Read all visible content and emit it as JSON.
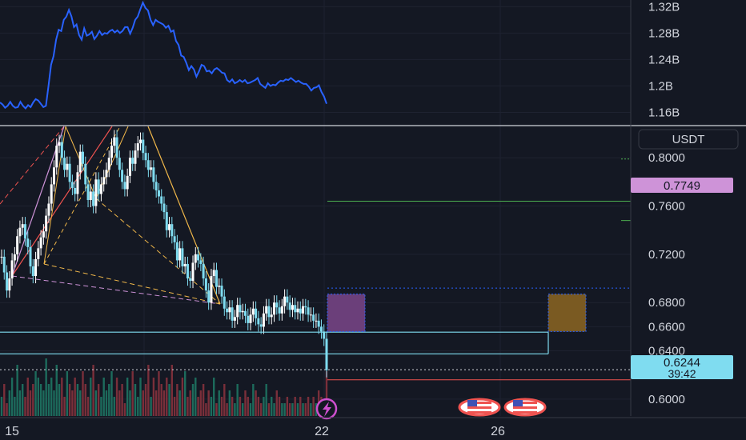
{
  "chart_data": [
    {
      "type": "line",
      "title": "",
      "ylim": [
        1.14,
        1.33
      ],
      "y_ticks": [
        "1.32B",
        "1.28B",
        "1.24B",
        "1.2B",
        "1.16B"
      ],
      "y_tick_values": [
        1.32,
        1.28,
        1.24,
        1.2,
        1.16
      ],
      "series": [
        {
          "color": "#2962ff",
          "values": [
            1.175,
            1.172,
            1.167,
            1.17,
            1.176,
            1.17,
            1.167,
            1.168,
            1.176,
            1.17,
            1.166,
            1.171,
            1.168,
            1.175,
            1.18,
            1.178,
            1.173,
            1.168,
            1.17,
            1.2,
            1.232,
            1.245,
            1.27,
            1.285,
            1.283,
            1.3,
            1.305,
            1.315,
            1.305,
            1.289,
            1.293,
            1.277,
            1.27,
            1.287,
            1.276,
            1.278,
            1.282,
            1.271,
            1.276,
            1.283,
            1.277,
            1.28,
            1.279,
            1.283,
            1.285,
            1.281,
            1.284,
            1.28,
            1.283,
            1.289,
            1.289,
            1.279,
            1.288,
            1.3,
            1.305,
            1.316,
            1.326,
            1.318,
            1.314,
            1.3,
            1.292,
            1.3,
            1.297,
            1.295,
            1.293,
            1.288,
            1.291,
            1.282,
            1.284,
            1.268,
            1.262,
            1.246,
            1.244,
            1.235,
            1.224,
            1.23,
            1.225,
            1.214,
            1.222,
            1.232,
            1.23,
            1.222,
            1.223,
            1.219,
            1.225,
            1.227,
            1.224,
            1.22,
            1.219,
            1.209,
            1.206,
            1.21,
            1.204,
            1.206,
            1.209,
            1.206,
            1.209,
            1.204,
            1.205,
            1.207,
            1.209,
            1.212,
            1.203,
            1.2,
            1.197,
            1.204,
            1.2,
            1.202,
            1.201,
            1.205,
            1.208,
            1.207,
            1.21,
            1.209,
            1.212,
            1.209,
            1.206,
            1.208,
            1.205,
            1.203,
            1.203,
            1.199,
            1.193,
            1.197,
            1.198,
            1.201,
            1.191,
            1.184,
            1.173
          ]
        }
      ]
    },
    {
      "type": "candlestick",
      "title": "",
      "ylim": [
        0.586,
        0.826
      ],
      "y_ticks": [
        "0.8000",
        "0.7600",
        "0.7200",
        "0.6800",
        "0.6600",
        "0.6400",
        "0.6000"
      ],
      "y_tick_values": [
        0.8,
        0.76,
        0.72,
        0.68,
        0.66,
        0.64,
        0.6
      ],
      "x_ticks": [
        "15",
        "22",
        "26"
      ],
      "currency": "USDT",
      "last_price": "0.6244",
      "countdown": "39:42",
      "highlight_price": "0.7749",
      "series_color_up": "#ffffff",
      "series_color_band": "#7fdcf0",
      "close_values": [
        0.718,
        0.705,
        0.69,
        0.7,
        0.715,
        0.72,
        0.735,
        0.742,
        0.745,
        0.733,
        0.726,
        0.71,
        0.702,
        0.716,
        0.725,
        0.734,
        0.739,
        0.752,
        0.762,
        0.778,
        0.792,
        0.81,
        0.813,
        0.8,
        0.79,
        0.795,
        0.78,
        0.775,
        0.77,
        0.788,
        0.805,
        0.795,
        0.778,
        0.765,
        0.772,
        0.76,
        0.782,
        0.77,
        0.778,
        0.784,
        0.79,
        0.8,
        0.81,
        0.817,
        0.8,
        0.79,
        0.78,
        0.774,
        0.785,
        0.8,
        0.795,
        0.806,
        0.812,
        0.815,
        0.804,
        0.798,
        0.79,
        0.792,
        0.78,
        0.773,
        0.768,
        0.762,
        0.755,
        0.74,
        0.745,
        0.735,
        0.73,
        0.715,
        0.725,
        0.71,
        0.712,
        0.7,
        0.698,
        0.713,
        0.72,
        0.715,
        0.712,
        0.7,
        0.69,
        0.68,
        0.702,
        0.707,
        0.693,
        0.694,
        0.685,
        0.675,
        0.672,
        0.676,
        0.665,
        0.668,
        0.678,
        0.672,
        0.673,
        0.669,
        0.663,
        0.67,
        0.675,
        0.667,
        0.662,
        0.66,
        0.671,
        0.677,
        0.668,
        0.67,
        0.68,
        0.676,
        0.671,
        0.677,
        0.685,
        0.68,
        0.674,
        0.678,
        0.672,
        0.675,
        0.671,
        0.677,
        0.676,
        0.67,
        0.67,
        0.665,
        0.665,
        0.66,
        0.656,
        0.65,
        0.624
      ],
      "volumes": [
        0.3,
        0.5,
        0.2,
        0.4,
        0.6,
        0.3,
        0.8,
        0.4,
        0.5,
        0.3,
        0.6,
        0.4,
        0.5,
        0.7,
        0.6,
        0.5,
        0.4,
        0.9,
        0.5,
        0.6,
        0.4,
        0.8,
        0.5,
        0.6,
        0.3,
        0.7,
        0.5,
        0.4,
        0.6,
        0.5,
        0.4,
        0.7,
        0.5,
        0.3,
        0.6,
        0.8,
        0.4,
        0.5,
        0.3,
        0.6,
        0.4,
        0.5,
        0.7,
        0.3,
        0.6,
        0.4,
        0.5,
        0.2,
        0.6,
        0.4,
        0.7,
        0.5,
        0.3,
        0.6,
        0.4,
        0.5,
        0.8,
        0.3,
        0.6,
        0.4,
        0.7,
        0.5,
        0.4,
        0.6,
        0.5,
        0.8,
        0.3,
        0.5,
        0.4,
        0.6,
        0.7,
        0.3,
        0.4,
        0.5,
        0.6,
        0.3,
        0.4,
        0.5,
        0.2,
        0.4,
        0.3,
        0.6,
        0.2,
        0.4,
        0.3,
        0.5,
        0.2,
        0.4,
        0.3,
        0.2,
        0.5,
        0.3,
        0.2,
        0.4,
        0.3,
        0.2,
        0.5,
        0.4,
        0.3,
        0.2,
        0.3,
        0.5,
        0.2,
        0.3,
        0.2,
        0.4,
        0.3,
        0.2,
        0.2,
        0.3,
        0.2,
        0.2,
        0.3,
        0.2,
        0.3,
        0.2,
        0.2,
        0.3,
        0.2,
        0.3,
        0.2,
        0.4,
        0.3,
        0.2,
        0.7
      ],
      "levels": {
        "cyan_upper": 0.6555,
        "cyan_lower": 0.6375,
        "green_target": 0.764,
        "red_stop": 0.616,
        "dotted_blue": 0.692,
        "last": 0.6244
      },
      "zones": {
        "purple_top": 0.687,
        "purple_bottom": 0.656,
        "orange_top": 0.687,
        "orange_bottom": 0.656
      }
    }
  ],
  "icons": {
    "lightning": "lightning-event-icon",
    "us_flag": "us-flag-event-icon"
  },
  "colors": {
    "background": "#141823",
    "price_blue": "#2962ff",
    "cyan": "#7fdcf0",
    "purple_label": "#ce93d8",
    "green": "#4caf50",
    "red": "#ef5350"
  }
}
